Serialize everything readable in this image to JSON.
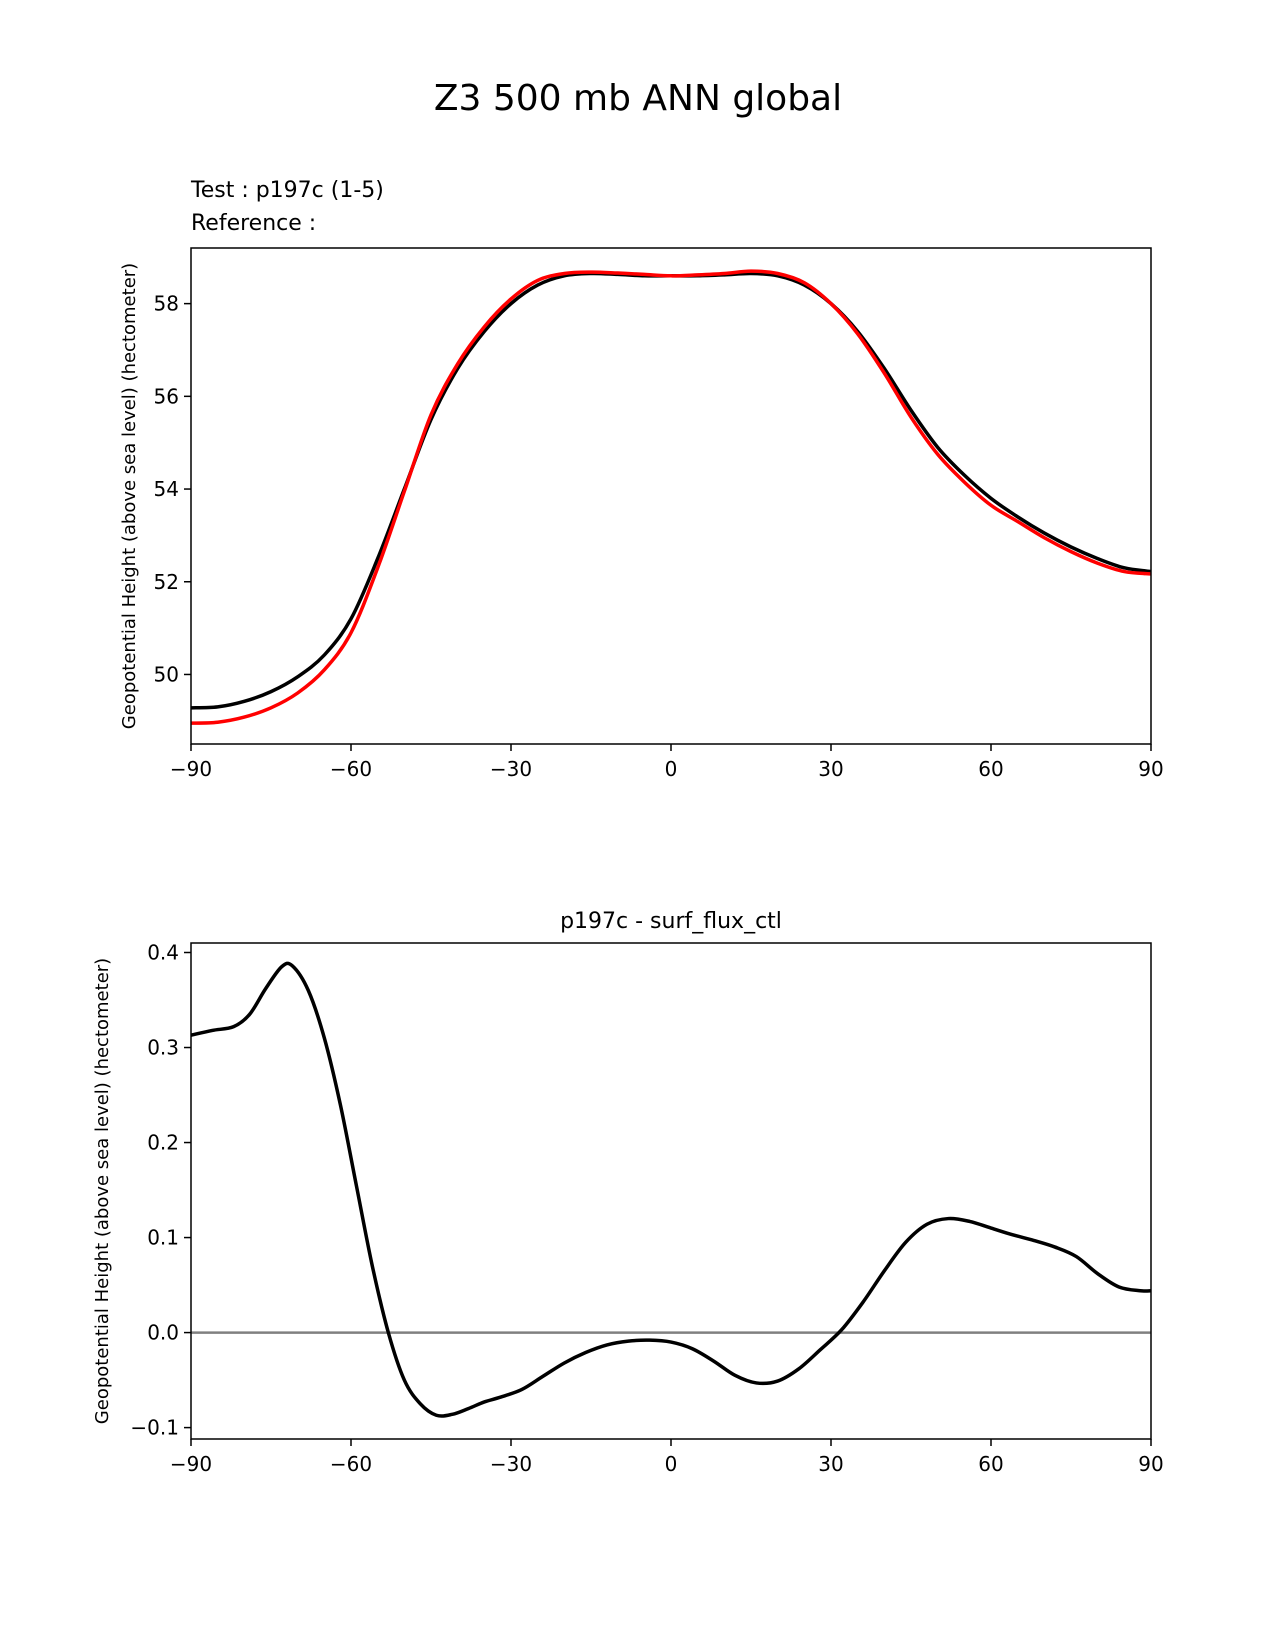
{
  "figure_title": "Z3 500 mb ANN global",
  "colors": {
    "test": "#000000",
    "reference": "#ff0000",
    "zero_line": "#808080"
  },
  "chart_data": [
    {
      "type": "line",
      "legend": {
        "test_label": "Test : p197c (1-5)",
        "reference_label": "Reference :"
      },
      "xlabel": "",
      "ylabel": "Geopotential Height (above sea level) (hectometer)",
      "xlim": [
        -90,
        90
      ],
      "ylim": [
        48.5,
        59.2
      ],
      "xticks": [
        -90,
        -60,
        -30,
        0,
        30,
        60,
        90
      ],
      "xtick_labels": [
        "−90",
        "−60",
        "−30",
        "0",
        "30",
        "60",
        "90"
      ],
      "yticks": [
        50,
        52,
        54,
        56,
        58
      ],
      "ytick_labels": [
        "50",
        "52",
        "54",
        "56",
        "58"
      ],
      "series": [
        {
          "name": "test",
          "x": [
            -90,
            -85,
            -80,
            -75,
            -70,
            -65,
            -60,
            -55,
            -50,
            -45,
            -40,
            -35,
            -30,
            -25,
            -20,
            -15,
            -10,
            -5,
            0,
            5,
            10,
            15,
            20,
            25,
            30,
            35,
            40,
            45,
            50,
            55,
            60,
            65,
            70,
            75,
            80,
            85,
            90
          ],
          "y": [
            49.28,
            49.3,
            49.42,
            49.63,
            49.95,
            50.42,
            51.2,
            52.5,
            54.0,
            55.5,
            56.6,
            57.4,
            58.0,
            58.4,
            58.6,
            58.65,
            58.63,
            58.6,
            58.6,
            58.6,
            58.62,
            58.65,
            58.6,
            58.4,
            58.0,
            57.4,
            56.6,
            55.7,
            54.9,
            54.3,
            53.8,
            53.4,
            53.05,
            52.75,
            52.5,
            52.3,
            52.22
          ]
        },
        {
          "name": "reference",
          "x": [
            -90,
            -85,
            -80,
            -75,
            -70,
            -65,
            -60,
            -55,
            -50,
            -45,
            -40,
            -35,
            -30,
            -25,
            -20,
            -15,
            -10,
            -5,
            0,
            5,
            10,
            15,
            20,
            25,
            30,
            35,
            40,
            45,
            50,
            55,
            60,
            65,
            70,
            75,
            80,
            85,
            90
          ],
          "y": [
            48.95,
            48.97,
            49.08,
            49.28,
            49.6,
            50.1,
            50.9,
            52.3,
            53.95,
            55.6,
            56.7,
            57.5,
            58.1,
            58.5,
            58.65,
            58.68,
            58.66,
            58.63,
            58.6,
            58.62,
            58.65,
            58.7,
            58.65,
            58.45,
            58.0,
            57.35,
            56.5,
            55.55,
            54.75,
            54.15,
            53.65,
            53.3,
            52.95,
            52.65,
            52.4,
            52.22,
            52.17
          ]
        }
      ]
    },
    {
      "type": "line",
      "title": "p197c - surf_flux_ctl",
      "xlabel": "",
      "ylabel": "Geopotential Height (above sea level) (hectometer)",
      "xlim": [
        -90,
        90
      ],
      "ylim": [
        -0.112,
        0.41
      ],
      "xticks": [
        -90,
        -60,
        -30,
        0,
        30,
        60,
        90
      ],
      "xtick_labels": [
        "−90",
        "−60",
        "−30",
        "0",
        "30",
        "60",
        "90"
      ],
      "yticks": [
        -0.1,
        0.0,
        0.1,
        0.2,
        0.3,
        0.4
      ],
      "ytick_labels": [
        "−0.1",
        "0.0",
        "0.1",
        "0.2",
        "0.3",
        "0.4"
      ],
      "hline": 0.0,
      "series": [
        {
          "name": "difference",
          "x": [
            -90,
            -86,
            -82,
            -79,
            -76,
            -73,
            -71,
            -68,
            -65,
            -62,
            -59,
            -56,
            -53,
            -50,
            -47,
            -44,
            -41,
            -38,
            -35,
            -32,
            -28,
            -24,
            -20,
            -16,
            -12,
            -8,
            -4,
            0,
            4,
            8,
            12,
            16,
            20,
            24,
            28,
            32,
            36,
            40,
            44,
            48,
            52,
            56,
            60,
            64,
            68,
            72,
            76,
            80,
            84,
            88,
            90
          ],
          "y": [
            0.313,
            0.318,
            0.322,
            0.335,
            0.362,
            0.385,
            0.386,
            0.36,
            0.31,
            0.24,
            0.155,
            0.07,
            0.0,
            -0.05,
            -0.075,
            -0.087,
            -0.086,
            -0.08,
            -0.073,
            -0.068,
            -0.06,
            -0.046,
            -0.032,
            -0.021,
            -0.013,
            -0.009,
            -0.008,
            -0.01,
            -0.017,
            -0.03,
            -0.045,
            -0.053,
            -0.051,
            -0.038,
            -0.018,
            0.003,
            0.032,
            0.065,
            0.095,
            0.114,
            0.12,
            0.117,
            0.11,
            0.103,
            0.097,
            0.09,
            0.08,
            0.062,
            0.048,
            0.044,
            0.044
          ]
        }
      ]
    }
  ]
}
